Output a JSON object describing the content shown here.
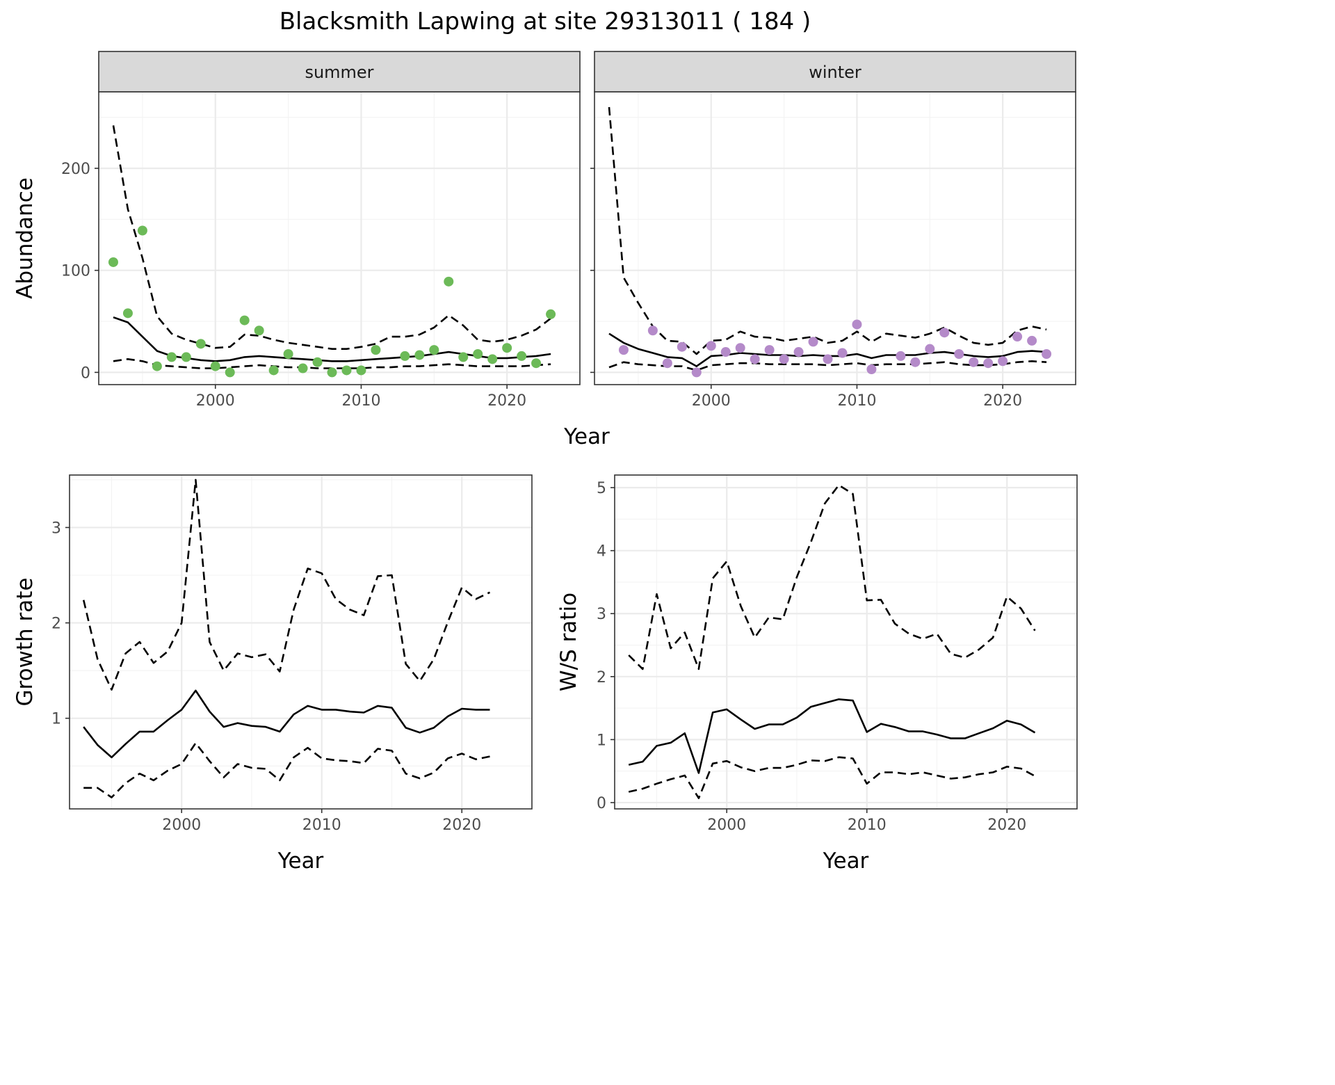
{
  "figure": {
    "title": "Blacksmith Lapwing at site 29313011 ( 184 )"
  },
  "chart_data": [
    {
      "type": "line",
      "facet": "summer",
      "xlabel": "Year",
      "ylabel": "Abundance",
      "xlim": [
        1992,
        2025
      ],
      "ylim": [
        -12,
        275
      ],
      "x_ticks": [
        2000,
        2010,
        2020
      ],
      "y_ticks": [
        0,
        100,
        200
      ],
      "grid": true,
      "point_color": "#6cba58",
      "points": {
        "x": [
          1993,
          1994,
          1995,
          1996,
          1997,
          1998,
          1999,
          2000,
          2001,
          2002,
          2003,
          2004,
          2005,
          2006,
          2007,
          2008,
          2009,
          2010,
          2011,
          2013,
          2014,
          2015,
          2016,
          2017,
          2018,
          2019,
          2020,
          2021,
          2022,
          2023
        ],
        "y": [
          108,
          58,
          139,
          6,
          15,
          15,
          28,
          6,
          0,
          51,
          41,
          2,
          18,
          4,
          10,
          0,
          2,
          2,
          22,
          16,
          17,
          22,
          89,
          15,
          18,
          13,
          24,
          16,
          9,
          57
        ]
      },
      "estimate": {
        "x": [
          1993,
          1994,
          1995,
          1996,
          1997,
          1998,
          1999,
          2000,
          2001,
          2002,
          2003,
          2004,
          2005,
          2006,
          2007,
          2008,
          2009,
          2010,
          2011,
          2012,
          2013,
          2014,
          2015,
          2016,
          2017,
          2018,
          2019,
          2020,
          2021,
          2022,
          2023
        ],
        "y": [
          54,
          49,
          35,
          21,
          16,
          14,
          12,
          11,
          12,
          15,
          16,
          15,
          14,
          13,
          12,
          11,
          11,
          12,
          13,
          14,
          15,
          16,
          18,
          20,
          18,
          16,
          14,
          14,
          15,
          16,
          18
        ]
      },
      "upper": {
        "x": [
          1993,
          1994,
          1995,
          1996,
          1997,
          1998,
          1999,
          2000,
          2001,
          2002,
          2003,
          2004,
          2005,
          2006,
          2007,
          2008,
          2009,
          2010,
          2011,
          2012,
          2013,
          2014,
          2015,
          2016,
          2017,
          2018,
          2019,
          2020,
          2021,
          2022,
          2023
        ],
        "y": [
          242,
          160,
          112,
          55,
          38,
          32,
          28,
          24,
          25,
          37,
          36,
          32,
          29,
          27,
          25,
          23,
          23,
          25,
          28,
          35,
          35,
          37,
          44,
          56,
          46,
          32,
          30,
          32,
          36,
          42,
          53
        ]
      },
      "lower": {
        "x": [
          1993,
          1994,
          1995,
          1996,
          1997,
          1998,
          1999,
          2000,
          2001,
          2002,
          2003,
          2004,
          2005,
          2006,
          2007,
          2008,
          2009,
          2010,
          2011,
          2012,
          2013,
          2014,
          2015,
          2016,
          2017,
          2018,
          2019,
          2020,
          2021,
          2022,
          2023
        ],
        "y": [
          11,
          13,
          11,
          7,
          6,
          5,
          4,
          4,
          5,
          6,
          7,
          6,
          5,
          5,
          4,
          4,
          4,
          4,
          5,
          5,
          6,
          6,
          7,
          8,
          7,
          6,
          6,
          6,
          6,
          7,
          8
        ]
      }
    },
    {
      "type": "line",
      "facet": "winter",
      "xlabel": "Year",
      "ylabel": "Abundance",
      "xlim": [
        1992,
        2025
      ],
      "ylim": [
        -12,
        275
      ],
      "x_ticks": [
        2000,
        2010,
        2020
      ],
      "y_ticks": [
        0,
        100,
        200
      ],
      "grid": true,
      "point_color": "#b48ac9",
      "points": {
        "x": [
          1994,
          1996,
          1997,
          1998,
          1999,
          2000,
          2001,
          2002,
          2003,
          2004,
          2005,
          2006,
          2007,
          2008,
          2009,
          2010,
          2011,
          2013,
          2014,
          2015,
          2016,
          2017,
          2018,
          2019,
          2020,
          2021,
          2022,
          2023
        ],
        "y": [
          22,
          41,
          9,
          25,
          0,
          26,
          20,
          24,
          13,
          22,
          13,
          20,
          30,
          13,
          19,
          47,
          3,
          16,
          10,
          23,
          39,
          18,
          10,
          9,
          11,
          35,
          31,
          18
        ]
      },
      "estimate": {
        "x": [
          1993,
          1994,
          1995,
          1996,
          1997,
          1998,
          1999,
          2000,
          2001,
          2002,
          2003,
          2004,
          2005,
          2006,
          2007,
          2008,
          2009,
          2010,
          2011,
          2012,
          2013,
          2014,
          2015,
          2016,
          2017,
          2018,
          2019,
          2020,
          2021,
          2022,
          2023
        ],
        "y": [
          38,
          29,
          23,
          19,
          15,
          14,
          6,
          16,
          17,
          19,
          18,
          17,
          17,
          16,
          17,
          16,
          16,
          18,
          14,
          17,
          17,
          17,
          19,
          20,
          18,
          16,
          15,
          16,
          20,
          21,
          20
        ]
      },
      "upper": {
        "x": [
          1993,
          1994,
          1995,
          1996,
          1997,
          1998,
          1999,
          2000,
          2001,
          2002,
          2003,
          2004,
          2005,
          2006,
          2007,
          2008,
          2009,
          2010,
          2011,
          2012,
          2013,
          2014,
          2015,
          2016,
          2017,
          2018,
          2019,
          2020,
          2021,
          2022,
          2023
        ],
        "y": [
          260,
          93,
          68,
          45,
          31,
          30,
          18,
          31,
          32,
          40,
          35,
          34,
          31,
          33,
          35,
          29,
          31,
          40,
          30,
          38,
          36,
          34,
          38,
          44,
          36,
          29,
          27,
          29,
          41,
          45,
          42
        ]
      },
      "lower": {
        "x": [
          1993,
          1994,
          1995,
          1996,
          1997,
          1998,
          1999,
          2000,
          2001,
          2002,
          2003,
          2004,
          2005,
          2006,
          2007,
          2008,
          2009,
          2010,
          2011,
          2012,
          2013,
          2014,
          2015,
          2016,
          2017,
          2018,
          2019,
          2020,
          2021,
          2022,
          2023
        ],
        "y": [
          5,
          10,
          8,
          7,
          6,
          6,
          2,
          7,
          8,
          9,
          9,
          8,
          8,
          8,
          8,
          7,
          8,
          9,
          7,
          8,
          8,
          8,
          9,
          10,
          8,
          7,
          7,
          8,
          10,
          11,
          10
        ]
      }
    },
    {
      "type": "line",
      "xlabel": "Year",
      "ylabel": "Growth rate",
      "xlim": [
        1992,
        2025
      ],
      "ylim": [
        0.05,
        3.55
      ],
      "x_ticks": [
        2000,
        2010,
        2020
      ],
      "y_ticks": [
        1,
        2,
        3
      ],
      "grid": true,
      "estimate": {
        "x": [
          1993,
          1994,
          1995,
          1996,
          1997,
          1998,
          1999,
          2000,
          2001,
          2002,
          2003,
          2004,
          2005,
          2006,
          2007,
          2008,
          2009,
          2010,
          2011,
          2012,
          2013,
          2014,
          2015,
          2016,
          2017,
          2018,
          2019,
          2020,
          2021,
          2022
        ],
        "y": [
          0.91,
          0.72,
          0.59,
          0.73,
          0.86,
          0.86,
          0.98,
          1.09,
          1.29,
          1.07,
          0.91,
          0.95,
          0.92,
          0.91,
          0.86,
          1.04,
          1.13,
          1.09,
          1.09,
          1.07,
          1.06,
          1.13,
          1.11,
          0.9,
          0.85,
          0.9,
          1.02,
          1.1,
          1.09,
          1.09
        ]
      },
      "upper": {
        "x": [
          1993,
          1994,
          1995,
          1996,
          1997,
          1998,
          1999,
          2000,
          2001,
          2002,
          2003,
          2004,
          2005,
          2006,
          2007,
          2008,
          2009,
          2010,
          2011,
          2012,
          2013,
          2014,
          2015,
          2016,
          2017,
          2018,
          2019,
          2020,
          2021,
          2022
        ],
        "y": [
          2.24,
          1.62,
          1.3,
          1.68,
          1.8,
          1.58,
          1.7,
          2.0,
          3.5,
          1.8,
          1.5,
          1.68,
          1.64,
          1.67,
          1.49,
          2.14,
          2.57,
          2.52,
          2.25,
          2.14,
          2.08,
          2.49,
          2.5,
          1.57,
          1.39,
          1.62,
          2.01,
          2.37,
          2.25,
          2.32
        ]
      },
      "lower": {
        "x": [
          1993,
          1994,
          1995,
          1996,
          1997,
          1998,
          1999,
          2000,
          2001,
          2002,
          2003,
          2004,
          2005,
          2006,
          2007,
          2008,
          2009,
          2010,
          2011,
          2012,
          2013,
          2014,
          2015,
          2016,
          2017,
          2018,
          2019,
          2020,
          2021,
          2022
        ],
        "y": [
          0.27,
          0.27,
          0.17,
          0.32,
          0.42,
          0.35,
          0.45,
          0.52,
          0.74,
          0.55,
          0.38,
          0.52,
          0.48,
          0.47,
          0.35,
          0.59,
          0.69,
          0.58,
          0.56,
          0.55,
          0.53,
          0.68,
          0.66,
          0.42,
          0.37,
          0.43,
          0.58,
          0.63,
          0.57,
          0.6
        ]
      }
    },
    {
      "type": "line",
      "xlabel": "Year",
      "ylabel": "W/S ratio",
      "xlim": [
        1992,
        2025
      ],
      "ylim": [
        -0.1,
        5.2
      ],
      "x_ticks": [
        2000,
        2010,
        2020
      ],
      "y_ticks": [
        0,
        1,
        2,
        3,
        4,
        5
      ],
      "grid": true,
      "estimate": {
        "x": [
          1993,
          1994,
          1995,
          1996,
          1997,
          1998,
          1999,
          2000,
          2001,
          2002,
          2003,
          2004,
          2005,
          2006,
          2007,
          2008,
          2009,
          2010,
          2011,
          2012,
          2013,
          2014,
          2015,
          2016,
          2017,
          2018,
          2019,
          2020,
          2021,
          2022
        ],
        "y": [
          0.6,
          0.65,
          0.9,
          0.95,
          1.1,
          0.47,
          1.43,
          1.48,
          1.32,
          1.17,
          1.24,
          1.24,
          1.35,
          1.52,
          1.58,
          1.64,
          1.62,
          1.12,
          1.25,
          1.2,
          1.13,
          1.13,
          1.08,
          1.02,
          1.02,
          1.1,
          1.18,
          1.3,
          1.24,
          1.11
        ]
      },
      "upper": {
        "x": [
          1993,
          1994,
          1995,
          1996,
          1997,
          1998,
          1999,
          2000,
          2001,
          2002,
          2003,
          2004,
          2005,
          2006,
          2007,
          2008,
          2009,
          2010,
          2011,
          2012,
          2013,
          2014,
          2015,
          2016,
          2017,
          2018,
          2019,
          2020,
          2021,
          2022
        ],
        "y": [
          2.34,
          2.12,
          3.31,
          2.45,
          2.7,
          2.12,
          3.56,
          3.83,
          3.12,
          2.62,
          2.94,
          2.91,
          3.58,
          4.13,
          4.75,
          5.04,
          4.9,
          3.21,
          3.22,
          2.84,
          2.68,
          2.6,
          2.68,
          2.36,
          2.3,
          2.43,
          2.62,
          3.27,
          3.08,
          2.73
        ]
      },
      "lower": {
        "x": [
          1993,
          1994,
          1995,
          1996,
          1997,
          1998,
          1999,
          2000,
          2001,
          2002,
          2003,
          2004,
          2005,
          2006,
          2007,
          2008,
          2009,
          2010,
          2011,
          2012,
          2013,
          2014,
          2015,
          2016,
          2017,
          2018,
          2019,
          2020,
          2021,
          2022
        ],
        "y": [
          0.17,
          0.22,
          0.3,
          0.37,
          0.43,
          0.07,
          0.62,
          0.66,
          0.56,
          0.5,
          0.55,
          0.55,
          0.6,
          0.67,
          0.66,
          0.72,
          0.7,
          0.3,
          0.48,
          0.48,
          0.45,
          0.48,
          0.43,
          0.38,
          0.4,
          0.45,
          0.48,
          0.57,
          0.54,
          0.42
        ]
      }
    }
  ]
}
